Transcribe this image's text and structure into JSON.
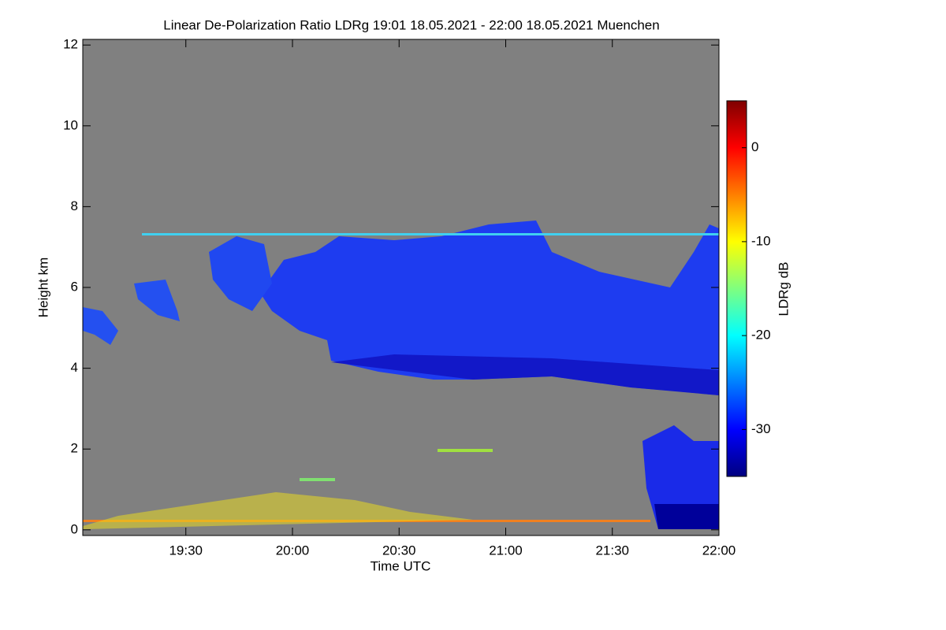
{
  "chart_data": {
    "type": "heatmap",
    "title": "Linear De-Polarization Ratio LDRg   19:01 18.05.2021 - 22:00 18.05.2021 Muenchen",
    "x_label": "Time UTC",
    "y_label": "Height km",
    "colorbar_label": "LDRg dB",
    "xlim": [
      1141,
      1320
    ],
    "xticks": [
      {
        "value": 1170,
        "label": "19:30"
      },
      {
        "value": 1200,
        "label": "20:00"
      },
      {
        "value": 1230,
        "label": "20:30"
      },
      {
        "value": 1260,
        "label": "21:00"
      },
      {
        "value": 1290,
        "label": "21:30"
      },
      {
        "value": 1320,
        "label": "22:00"
      }
    ],
    "ylim": [
      -0.14,
      12.14
    ],
    "yticks": [
      0,
      2,
      4,
      6,
      8,
      10,
      12
    ],
    "clim": [
      -35,
      5
    ],
    "cticks": [
      -30,
      -20,
      -10,
      0
    ],
    "colormap": "jet"
  }
}
